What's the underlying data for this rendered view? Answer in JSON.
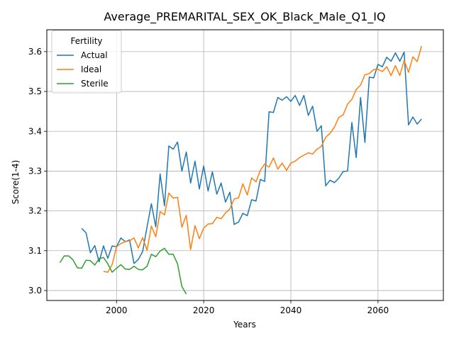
{
  "chart_data": {
    "type": "line",
    "title": "Average_PREMARITAL_SEX_OK_Black_Male_Q1_IQ",
    "xlabel": "Years",
    "ylabel": "Score(1-4)",
    "xlim": [
      1984,
      2075
    ],
    "ylim": [
      2.975,
      3.655
    ],
    "xticks": [
      2000,
      2020,
      2040,
      2060
    ],
    "yticks": [
      3.0,
      3.1,
      3.2,
      3.3,
      3.4,
      3.5,
      3.6
    ],
    "grid": true,
    "legend": {
      "title": "Fertility",
      "placement": "top-left"
    },
    "series": [
      {
        "name": "Actual",
        "color": "#1f77b4",
        "x": [
          1992,
          1993,
          1994,
          1995,
          1996,
          1997,
          1998,
          1999,
          2000,
          2001,
          2002,
          2003,
          2004,
          2005,
          2006,
          2007,
          2008,
          2009,
          2010,
          2011,
          2012,
          2013,
          2014,
          2015,
          2016,
          2017,
          2018,
          2019,
          2020,
          2021,
          2022,
          2023,
          2024,
          2025,
          2026,
          2027,
          2028,
          2029,
          2030,
          2031,
          2032,
          2033,
          2034,
          2035,
          2036,
          2037,
          2038,
          2039,
          2040,
          2041,
          2042,
          2043,
          2044,
          2045,
          2046,
          2047,
          2048,
          2049,
          2050,
          2051,
          2052,
          2053,
          2054,
          2055,
          2056,
          2057,
          2058,
          2059,
          2060,
          2061,
          2062,
          2063,
          2064,
          2065,
          2066,
          2067,
          2068,
          2069,
          2070
        ],
        "y": [
          3.156,
          3.145,
          3.095,
          3.113,
          3.072,
          3.112,
          3.081,
          3.112,
          3.11,
          3.132,
          3.123,
          3.127,
          3.068,
          3.078,
          3.098,
          3.16,
          3.218,
          3.16,
          3.293,
          3.213,
          3.363,
          3.355,
          3.373,
          3.3,
          3.348,
          3.27,
          3.325,
          3.255,
          3.313,
          3.25,
          3.298,
          3.242,
          3.27,
          3.222,
          3.247,
          3.166,
          3.172,
          3.194,
          3.188,
          3.228,
          3.225,
          3.279,
          3.274,
          3.449,
          3.447,
          3.485,
          3.478,
          3.487,
          3.475,
          3.49,
          3.465,
          3.49,
          3.44,
          3.463,
          3.4,
          3.414,
          3.263,
          3.277,
          3.271,
          3.282,
          3.299,
          3.3,
          3.422,
          3.334,
          3.485,
          3.372,
          3.536,
          3.534,
          3.568,
          3.562,
          3.586,
          3.576,
          3.597,
          3.576,
          3.599,
          3.416,
          3.436,
          3.418,
          3.431
        ]
      },
      {
        "name": "Ideal",
        "color": "#ff7f0e",
        "x": [
          1997,
          1998,
          1999,
          2000,
          2001,
          2002,
          2003,
          2004,
          2005,
          2006,
          2007,
          2008,
          2009,
          2010,
          2011,
          2012,
          2013,
          2014,
          2015,
          2016,
          2017,
          2018,
          2019,
          2020,
          2021,
          2022,
          2023,
          2024,
          2025,
          2026,
          2027,
          2028,
          2029,
          2030,
          2031,
          2032,
          2033,
          2034,
          2035,
          2036,
          2037,
          2038,
          2039,
          2040,
          2041,
          2042,
          2043,
          2044,
          2045,
          2046,
          2047,
          2048,
          2049,
          2050,
          2051,
          2052,
          2053,
          2054,
          2055,
          2056,
          2057,
          2058,
          2059,
          2060,
          2061,
          2062,
          2063,
          2064,
          2065,
          2066,
          2067,
          2068,
          2069,
          2070
        ],
        "y": [
          3.048,
          3.046,
          3.065,
          3.11,
          3.118,
          3.123,
          3.125,
          3.132,
          3.107,
          3.133,
          3.101,
          3.162,
          3.135,
          3.198,
          3.19,
          3.245,
          3.232,
          3.234,
          3.159,
          3.189,
          3.103,
          3.163,
          3.13,
          3.157,
          3.167,
          3.168,
          3.184,
          3.18,
          3.195,
          3.205,
          3.23,
          3.233,
          3.268,
          3.24,
          3.283,
          3.273,
          3.302,
          3.318,
          3.31,
          3.333,
          3.305,
          3.32,
          3.302,
          3.32,
          3.325,
          3.334,
          3.34,
          3.346,
          3.343,
          3.355,
          3.362,
          3.385,
          3.395,
          3.41,
          3.435,
          3.441,
          3.468,
          3.48,
          3.505,
          3.516,
          3.542,
          3.545,
          3.555,
          3.556,
          3.55,
          3.562,
          3.54,
          3.565,
          3.54,
          3.578,
          3.548,
          3.587,
          3.575,
          3.614
        ]
      },
      {
        "name": "Sterile",
        "color": "#2ca02c",
        "x": [
          1987,
          1988,
          1989,
          1990,
          1991,
          1992,
          1993,
          1994,
          1995,
          1996,
          1997,
          1998,
          1999,
          2000,
          2001,
          2002,
          2003,
          2004,
          2005,
          2006,
          2007,
          2008,
          2009,
          2010,
          2011,
          2012,
          2013,
          2014,
          2015,
          2016
        ],
        "y": [
          3.07,
          3.087,
          3.087,
          3.077,
          3.057,
          3.056,
          3.076,
          3.075,
          3.064,
          3.08,
          3.083,
          3.067,
          3.046,
          3.056,
          3.065,
          3.054,
          3.053,
          3.061,
          3.053,
          3.052,
          3.061,
          3.091,
          3.085,
          3.099,
          3.106,
          3.091,
          3.091,
          3.067,
          3.01,
          2.991
        ]
      }
    ]
  }
}
